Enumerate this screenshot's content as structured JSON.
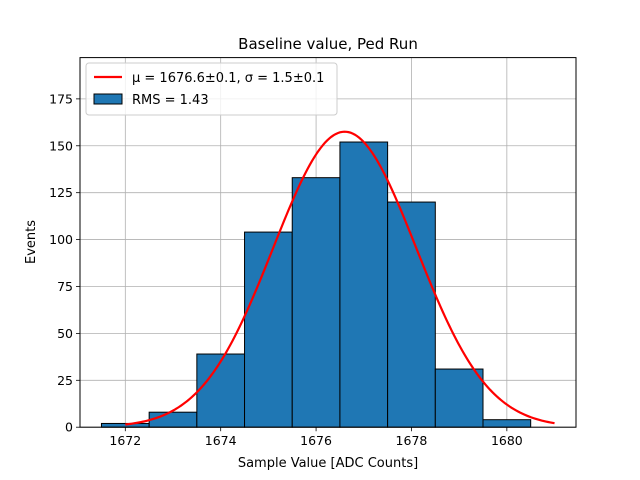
{
  "chart_data": {
    "type": "bar",
    "title": "Baseline value, Ped Run",
    "xlabel": "Sample Value [ADC Counts]",
    "ylabel": "Events",
    "xlim": [
      1671.05,
      1681.45
    ],
    "ylim": [
      0,
      197
    ],
    "xticks": [
      1672,
      1674,
      1676,
      1678,
      1680
    ],
    "yticks": [
      0,
      25,
      50,
      75,
      100,
      125,
      150,
      175
    ],
    "grid": true,
    "legend_position": "top-left",
    "histogram": {
      "name": "RMS = 1.43",
      "color": "#1f77b4",
      "edgecolor": "#000000",
      "bin_edges": [
        1671.5,
        1672.5,
        1673.5,
        1674.5,
        1675.5,
        1676.5,
        1677.5,
        1678.5,
        1679.5,
        1680.5
      ],
      "values": [
        2,
        8,
        39,
        104,
        133,
        152,
        120,
        31,
        4
      ]
    },
    "fit": {
      "name": "μ = 1676.6±0.1, σ = 1.5±0.1",
      "type": "gaussian",
      "mu": 1676.6,
      "sigma": 1.5,
      "amplitude": 157.5,
      "x_range": [
        1672,
        1681
      ],
      "color": "#ff0000"
    }
  }
}
